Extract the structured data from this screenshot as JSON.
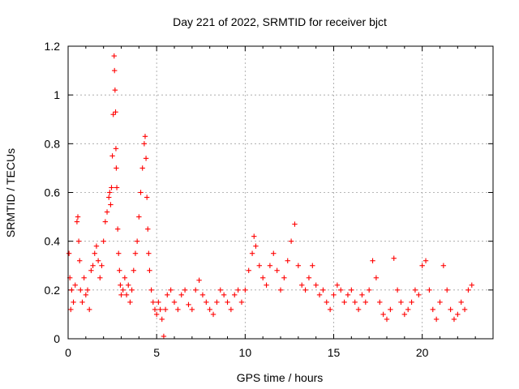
{
  "chart_data": {
    "type": "scatter",
    "title": "Day 221 of 2022, SRMTID for receiver bjct",
    "xlabel": "GPS time / hours",
    "ylabel": "SRMTID / TECUs",
    "xlim": [
      0,
      24
    ],
    "ylim": [
      0,
      1.2
    ],
    "xticks": [
      0,
      5,
      10,
      15,
      20
    ],
    "xtick_labels": [
      "0",
      "5",
      "10",
      "15",
      "20"
    ],
    "yticks": [
      0,
      0.2,
      0.4,
      0.6,
      0.8,
      1.0,
      1.2
    ],
    "ytick_labels": [
      "0",
      "0.2",
      "0.4",
      "0.6",
      "0.8",
      "1",
      "1.2"
    ],
    "grid": true,
    "marker": "+",
    "color": "#ff0000",
    "series": [
      {
        "name": "SRMTID",
        "x": [
          0.05,
          0.1,
          0.15,
          0.2,
          0.3,
          0.4,
          0.5,
          0.55,
          0.6,
          0.65,
          0.7,
          0.8,
          0.9,
          1.0,
          1.1,
          1.2,
          1.3,
          1.4,
          1.5,
          1.6,
          1.7,
          1.8,
          1.9,
          2.0,
          2.1,
          2.2,
          2.3,
          2.35,
          2.4,
          2.45,
          2.5,
          2.55,
          2.6,
          2.62,
          2.65,
          2.68,
          2.7,
          2.72,
          2.75,
          2.8,
          2.85,
          2.9,
          2.95,
          3.0,
          3.1,
          3.2,
          3.3,
          3.4,
          3.5,
          3.6,
          3.7,
          3.8,
          3.9,
          4.0,
          4.1,
          4.2,
          4.3,
          4.35,
          4.4,
          4.45,
          4.5,
          4.55,
          4.6,
          4.7,
          4.8,
          4.9,
          5.0,
          5.1,
          5.2,
          5.3,
          5.4,
          5.5,
          5.6,
          5.8,
          6.0,
          6.2,
          6.4,
          6.6,
          6.8,
          7.0,
          7.2,
          7.4,
          7.6,
          7.8,
          8.0,
          8.2,
          8.4,
          8.6,
          8.8,
          9.0,
          9.2,
          9.4,
          9.6,
          9.8,
          10.0,
          10.2,
          10.4,
          10.5,
          10.6,
          10.8,
          11.0,
          11.2,
          11.4,
          11.6,
          11.8,
          12.0,
          12.2,
          12.4,
          12.6,
          12.8,
          13.0,
          13.2,
          13.4,
          13.6,
          13.8,
          14.0,
          14.2,
          14.4,
          14.6,
          14.8,
          15.0,
          15.2,
          15.4,
          15.6,
          15.8,
          16.0,
          16.2,
          16.4,
          16.6,
          16.8,
          17.0,
          17.2,
          17.4,
          17.6,
          17.8,
          18.0,
          18.2,
          18.4,
          18.6,
          18.8,
          19.0,
          19.2,
          19.4,
          19.6,
          19.8,
          20.0,
          20.2,
          20.4,
          20.6,
          20.8,
          21.0,
          21.2,
          21.4,
          21.6,
          21.8,
          22.0,
          22.2,
          22.4,
          22.6,
          22.8
        ],
        "y": [
          0.35,
          0.25,
          0.12,
          0.2,
          0.15,
          0.22,
          0.48,
          0.5,
          0.4,
          0.32,
          0.2,
          0.15,
          0.25,
          0.18,
          0.2,
          0.12,
          0.28,
          0.3,
          0.35,
          0.38,
          0.32,
          0.25,
          0.3,
          0.4,
          0.48,
          0.52,
          0.58,
          0.6,
          0.55,
          0.62,
          0.75,
          0.92,
          1.16,
          1.1,
          1.02,
          0.93,
          0.78,
          0.7,
          0.62,
          0.45,
          0.35,
          0.28,
          0.22,
          0.18,
          0.2,
          0.25,
          0.18,
          0.22,
          0.15,
          0.2,
          0.28,
          0.35,
          0.4,
          0.5,
          0.6,
          0.7,
          0.8,
          0.83,
          0.74,
          0.58,
          0.45,
          0.35,
          0.28,
          0.2,
          0.15,
          0.12,
          0.1,
          0.15,
          0.12,
          0.08,
          0.01,
          0.12,
          0.18,
          0.2,
          0.15,
          0.12,
          0.18,
          0.2,
          0.14,
          0.12,
          0.2,
          0.24,
          0.18,
          0.15,
          0.12,
          0.1,
          0.15,
          0.2,
          0.18,
          0.15,
          0.12,
          0.18,
          0.2,
          0.15,
          0.2,
          0.28,
          0.35,
          0.42,
          0.38,
          0.3,
          0.25,
          0.22,
          0.3,
          0.35,
          0.28,
          0.2,
          0.25,
          0.32,
          0.4,
          0.47,
          0.3,
          0.22,
          0.2,
          0.25,
          0.3,
          0.22,
          0.18,
          0.2,
          0.15,
          0.12,
          0.18,
          0.22,
          0.2,
          0.15,
          0.18,
          0.2,
          0.15,
          0.12,
          0.18,
          0.15,
          0.2,
          0.32,
          0.25,
          0.15,
          0.1,
          0.08,
          0.12,
          0.33,
          0.2,
          0.15,
          0.1,
          0.12,
          0.15,
          0.2,
          0.18,
          0.3,
          0.32,
          0.2,
          0.12,
          0.08,
          0.15,
          0.3,
          0.2,
          0.12,
          0.08,
          0.1,
          0.15,
          0.12,
          0.2,
          0.22
        ]
      }
    ]
  }
}
